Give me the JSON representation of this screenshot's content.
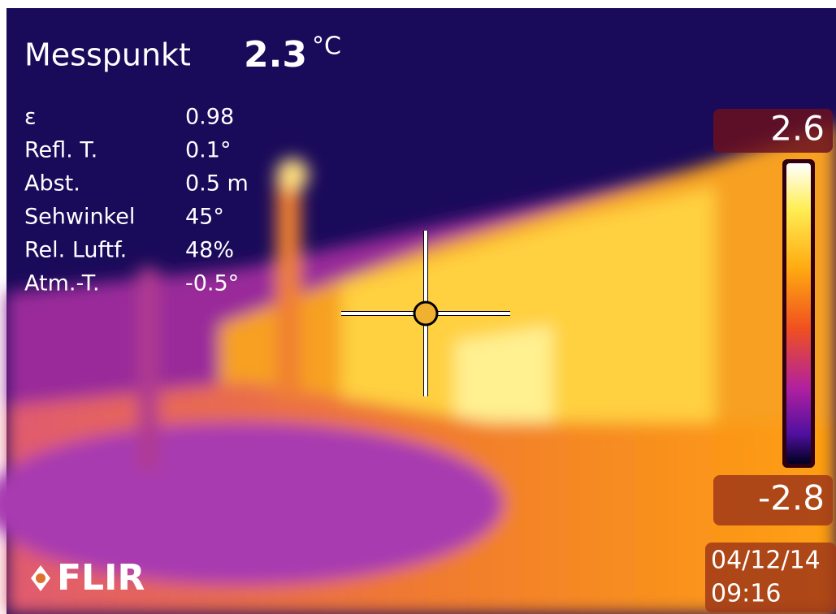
{
  "measurement": {
    "label": "Messpunkt",
    "value": "2.3",
    "unit": "°C"
  },
  "parameters": [
    {
      "label": "ε",
      "value": "0.98"
    },
    {
      "label": "Refl. T.",
      "value": "0.1°"
    },
    {
      "label": "Abst.",
      "value": "0.5 m"
    },
    {
      "label": "Sehwinkel",
      "value": "45°"
    },
    {
      "label": "Rel. Luftf.",
      "value": "48%"
    },
    {
      "label": "Atm.-T.",
      "value": "-0.5°"
    }
  ],
  "scale": {
    "max": "2.6",
    "min": "-2.8"
  },
  "timestamp": {
    "date": "04/12/14",
    "time": "09:16"
  },
  "logo": "FLIR"
}
